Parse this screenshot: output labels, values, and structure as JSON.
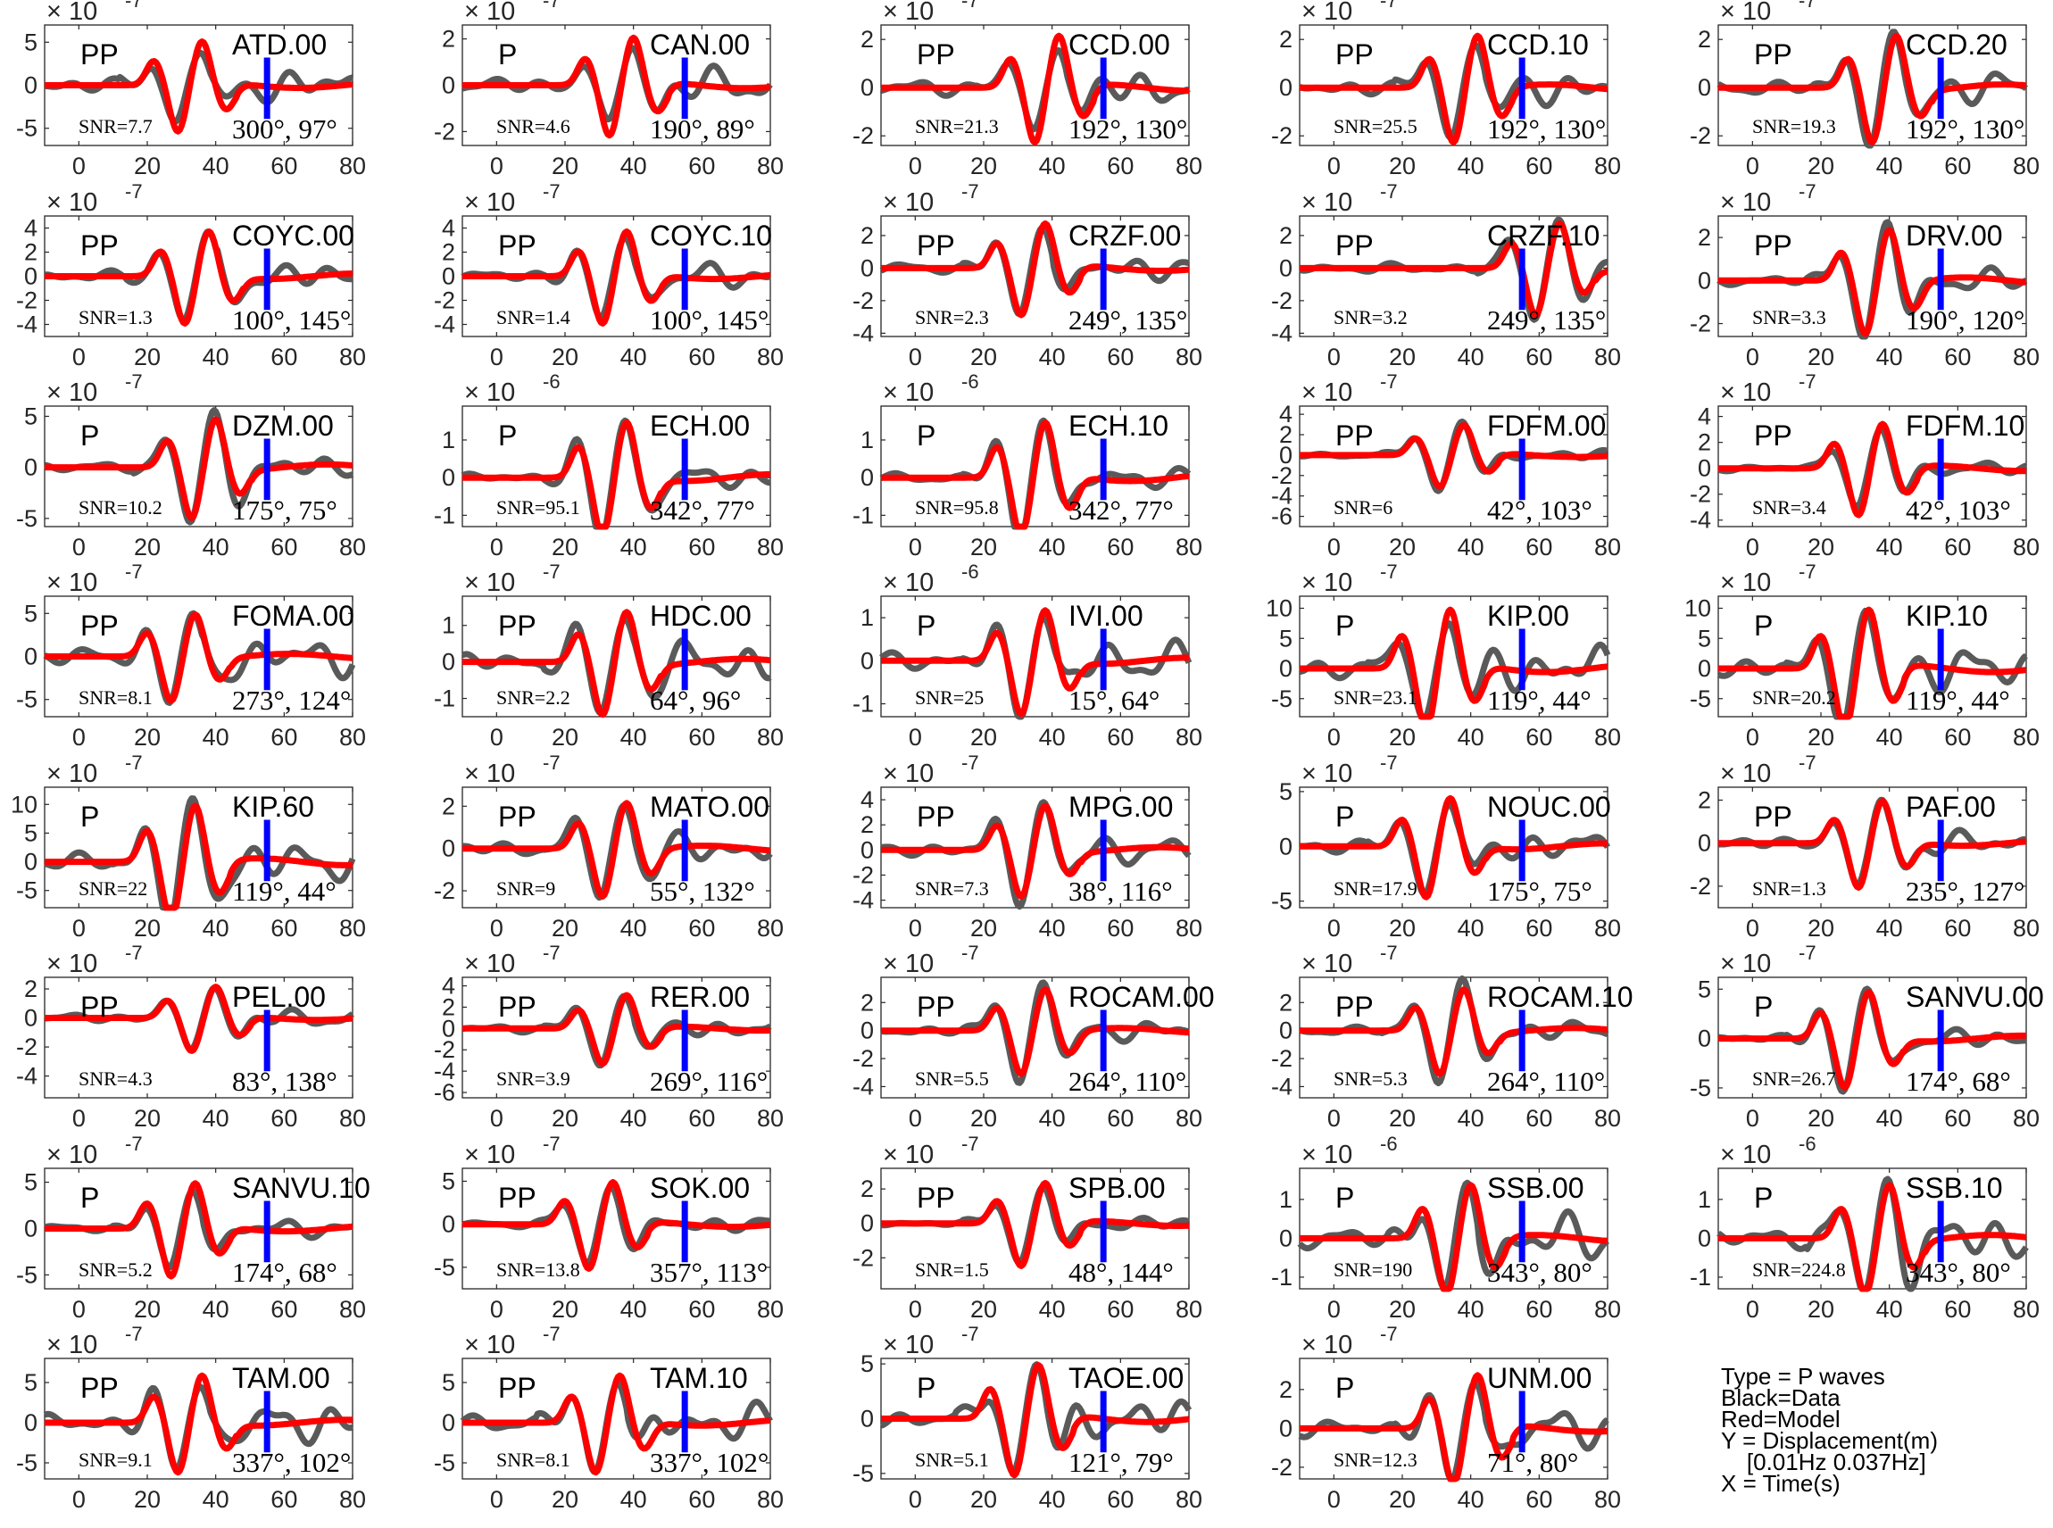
{
  "chart_data": {
    "type": "line",
    "layout": "small-multiples",
    "xlim": [
      -10,
      80
    ],
    "x_ticks": [
      0,
      20,
      40,
      60,
      80
    ],
    "colors": {
      "data": "#5a5a5a",
      "model": "#ff0000",
      "marker": "#0000ff"
    },
    "series_legend": [
      "Black=Data",
      "Red=Model"
    ],
    "panels": [
      {
        "station": "ATD.00",
        "phase": "PP",
        "snr": "SNR=7.7",
        "angles": "300°, 97°",
        "exponent": "-7",
        "y_ticks": [
          "5",
          "0",
          "-5"
        ],
        "y_vals": [
          5,
          0,
          -5
        ],
        "ylim": [
          -7,
          7
        ],
        "peak": 5.2,
        "t0": 18,
        "seed": 1
      },
      {
        "station": "CAN.00",
        "phase": "P",
        "snr": "SNR=4.6",
        "angles": "190°, 89°",
        "exponent": "-7",
        "y_ticks": [
          "2",
          "0",
          "-2"
        ],
        "y_vals": [
          2,
          0,
          -2
        ],
        "ylim": [
          -2.6,
          2.6
        ],
        "peak": 2.1,
        "t0": 22,
        "seed": 2
      },
      {
        "station": "CCD.00",
        "phase": "PP",
        "snr": "SNR=21.3",
        "angles": "192°, 130°",
        "exponent": "-7",
        "y_ticks": [
          "2",
          "0",
          "-2"
        ],
        "y_vals": [
          2,
          0,
          -2
        ],
        "ylim": [
          -2.4,
          2.6
        ],
        "peak": 2.2,
        "t0": 24,
        "seed": 3
      },
      {
        "station": "CCD.10",
        "phase": "PP",
        "snr": "SNR=25.5",
        "angles": "192°, 130°",
        "exponent": "-7",
        "y_ticks": [
          "2",
          "0",
          "-2"
        ],
        "y_vals": [
          2,
          0,
          -2
        ],
        "ylim": [
          -2.4,
          2.6
        ],
        "peak": 2.2,
        "t0": 24,
        "seed": 4
      },
      {
        "station": "CCD.20",
        "phase": "PP",
        "snr": "SNR=19.3",
        "angles": "192°, 130°",
        "exponent": "-7",
        "y_ticks": [
          "2",
          "0",
          "-2"
        ],
        "y_vals": [
          2,
          0,
          -2
        ],
        "ylim": [
          -2.4,
          2.6
        ],
        "peak": 2.2,
        "t0": 24,
        "seed": 5
      },
      {
        "station": "COYC.00",
        "phase": "PP",
        "snr": "SNR=1.3",
        "angles": "100°, 145°",
        "exponent": "-7",
        "y_ticks": [
          "4",
          "2",
          "0",
          "-2",
          "-4"
        ],
        "y_vals": [
          4,
          2,
          0,
          -2,
          -4
        ],
        "ylim": [
          -5,
          5
        ],
        "peak": 3.8,
        "t0": 20,
        "seed": 6
      },
      {
        "station": "COYC.10",
        "phase": "PP",
        "snr": "SNR=1.4",
        "angles": "100°, 145°",
        "exponent": "-7",
        "y_ticks": [
          "4",
          "2",
          "0",
          "-2",
          "-4"
        ],
        "y_vals": [
          4,
          2,
          0,
          -2,
          -4
        ],
        "ylim": [
          -5,
          5
        ],
        "peak": 3.8,
        "t0": 20,
        "seed": 7
      },
      {
        "station": "CRZF.00",
        "phase": "PP",
        "snr": "SNR=2.3",
        "angles": "249°, 135°",
        "exponent": "-7",
        "y_ticks": [
          "2",
          "0",
          "-2",
          "-4"
        ],
        "y_vals": [
          2,
          0,
          -2,
          -4
        ],
        "ylim": [
          -4.2,
          3.2
        ],
        "peak": 2.8,
        "t0": 20,
        "seed": 8
      },
      {
        "station": "CRZF.10",
        "phase": "PP",
        "snr": "SNR=3.2",
        "angles": "249°, 135°",
        "exponent": "-7",
        "y_ticks": [
          "2",
          "0",
          "-2",
          "-4"
        ],
        "y_vals": [
          2,
          0,
          -2,
          -4
        ],
        "ylim": [
          -4.2,
          3.2
        ],
        "peak": 2.8,
        "t0": 48,
        "seed": 9
      },
      {
        "station": "DRV.00",
        "phase": "PP",
        "snr": "SNR=3.3",
        "angles": "190°, 120°",
        "exponent": "-7",
        "y_ticks": [
          "2",
          "0",
          "-2"
        ],
        "y_vals": [
          2,
          0,
          -2
        ],
        "ylim": [
          -2.6,
          3
        ],
        "peak": 2.4,
        "t0": 22,
        "seed": 10
      },
      {
        "station": "DZM.00",
        "phase": "P",
        "snr": "SNR=10.2",
        "angles": "175°, 75°",
        "exponent": "-7",
        "y_ticks": [
          "5",
          "0",
          "-5"
        ],
        "y_vals": [
          5,
          0,
          -5
        ],
        "ylim": [
          -5.8,
          6
        ],
        "peak": 4.8,
        "t0": 22,
        "seed": 11
      },
      {
        "station": "ECH.00",
        "phase": "P",
        "snr": "SNR=95.1",
        "angles": "342°, 77°",
        "exponent": "-6",
        "y_ticks": [
          "1",
          "0",
          "-1"
        ],
        "y_vals": [
          1,
          0,
          -1
        ],
        "ylim": [
          -1.3,
          1.9
        ],
        "peak": 1.5,
        "t0": 20,
        "seed": 12
      },
      {
        "station": "ECH.10",
        "phase": "P",
        "snr": "SNR=95.8",
        "angles": "342°, 77°",
        "exponent": "-6",
        "y_ticks": [
          "1",
          "0",
          "-1"
        ],
        "y_vals": [
          1,
          0,
          -1
        ],
        "ylim": [
          -1.3,
          1.9
        ],
        "peak": 1.5,
        "t0": 20,
        "seed": 13
      },
      {
        "station": "FDFM.00",
        "phase": "PP",
        "snr": "SNR=6",
        "angles": "42°, 103°",
        "exponent": "-7",
        "y_ticks": [
          "4",
          "2",
          "0",
          "-2",
          "-4",
          "-6"
        ],
        "y_vals": [
          4,
          2,
          0,
          -2,
          -4,
          -6
        ],
        "ylim": [
          -7,
          4.8
        ],
        "peak": 3,
        "t0": 20,
        "seed": 14
      },
      {
        "station": "FDFM.10",
        "phase": "PP",
        "snr": "SNR=3.4",
        "angles": "42°, 103°",
        "exponent": "-7",
        "y_ticks": [
          "4",
          "2",
          "0",
          "-2",
          "-4"
        ],
        "y_vals": [
          4,
          2,
          0,
          -2,
          -4
        ],
        "ylim": [
          -4.5,
          4.8
        ],
        "peak": 3.5,
        "t0": 20,
        "seed": 15
      },
      {
        "station": "FOMA.00",
        "phase": "PP",
        "snr": "SNR=8.1",
        "angles": "273°, 124°",
        "exponent": "-7",
        "y_ticks": [
          "5",
          "0",
          "-5"
        ],
        "y_vals": [
          5,
          0,
          -5
        ],
        "ylim": [
          -7,
          7
        ],
        "peak": 5,
        "t0": 16,
        "seed": 16
      },
      {
        "station": "HDC.00",
        "phase": "PP",
        "snr": "SNR=2.2",
        "angles": "64°, 96°",
        "exponent": "-7",
        "y_ticks": [
          "1",
          "0",
          "-1"
        ],
        "y_vals": [
          1,
          0,
          -1
        ],
        "ylim": [
          -1.5,
          1.8
        ],
        "peak": 1.4,
        "t0": 20,
        "seed": 17
      },
      {
        "station": "IVI.00",
        "phase": "P",
        "snr": "SNR=25",
        "angles": "15°, 64°",
        "exponent": "-6",
        "y_ticks": [
          "1",
          "0",
          "-1"
        ],
        "y_vals": [
          1,
          0,
          -1
        ],
        "ylim": [
          -1.3,
          1.5
        ],
        "peak": 1.2,
        "t0": 20,
        "seed": 18
      },
      {
        "station": "KIP.00",
        "phase": "P",
        "snr": "SNR=23.1",
        "angles": "119°, 44°",
        "exponent": "-7",
        "y_ticks": [
          "10",
          "5",
          "0",
          "-5"
        ],
        "y_vals": [
          10,
          5,
          0,
          -5
        ],
        "ylim": [
          -8,
          12
        ],
        "peak": 10,
        "t0": 16,
        "seed": 19
      },
      {
        "station": "KIP.10",
        "phase": "P",
        "snr": "SNR=20.2",
        "angles": "119°, 44°",
        "exponent": "-7",
        "y_ticks": [
          "10",
          "5",
          "0",
          "-5"
        ],
        "y_vals": [
          10,
          5,
          0,
          -5
        ],
        "ylim": [
          -8,
          12
        ],
        "peak": 10,
        "t0": 16,
        "seed": 20
      },
      {
        "station": "KIP.60",
        "phase": "P",
        "snr": "SNR=22",
        "angles": "119°, 44°",
        "exponent": "-7",
        "y_ticks": [
          "10",
          "5",
          "0",
          "-5"
        ],
        "y_vals": [
          10,
          5,
          0,
          -5
        ],
        "ylim": [
          -8,
          13
        ],
        "peak": 10,
        "t0": 16,
        "seed": 21
      },
      {
        "station": "MATO.00",
        "phase": "PP",
        "snr": "SNR=9",
        "angles": "55°, 132°",
        "exponent": "-7",
        "y_ticks": [
          "2",
          "0",
          "-2"
        ],
        "y_vals": [
          2,
          0,
          -2
        ],
        "ylim": [
          -2.8,
          2.9
        ],
        "peak": 2.2,
        "t0": 20,
        "seed": 22
      },
      {
        "station": "MPG.00",
        "phase": "PP",
        "snr": "SNR=7.3",
        "angles": "38°, 116°",
        "exponent": "-7",
        "y_ticks": [
          "4",
          "2",
          "0",
          "-2",
          "-4"
        ],
        "y_vals": [
          4,
          2,
          0,
          -2,
          -4
        ],
        "ylim": [
          -4.6,
          5
        ],
        "peak": 3.6,
        "t0": 20,
        "seed": 23
      },
      {
        "station": "NOUC.00",
        "phase": "P",
        "snr": "SNR=17.9",
        "angles": "175°, 75°",
        "exponent": "-7",
        "y_ticks": [
          "5",
          "0",
          "-5"
        ],
        "y_vals": [
          5,
          0,
          -5
        ],
        "ylim": [
          -5.6,
          5.4
        ],
        "peak": 4.5,
        "t0": 16,
        "seed": 24
      },
      {
        "station": "PAF.00",
        "phase": "PP",
        "snr": "SNR=1.3",
        "angles": "235°, 127°",
        "exponent": "-7",
        "y_ticks": [
          "2",
          "0",
          "-2"
        ],
        "y_vals": [
          2,
          0,
          -2
        ],
        "ylim": [
          -3,
          2.6
        ],
        "peak": 2,
        "t0": 20,
        "seed": 25
      },
      {
        "station": "PEL.00",
        "phase": "PP",
        "snr": "SNR=4.3",
        "angles": "83°, 138°",
        "exponent": "-7",
        "y_ticks": [
          "2",
          "0",
          "-2",
          "-4"
        ],
        "y_vals": [
          2,
          0,
          -2,
          -4
        ],
        "ylim": [
          -5.5,
          2.8
        ],
        "peak": 2.2,
        "t0": 22,
        "seed": 26
      },
      {
        "station": "RER.00",
        "phase": "PP",
        "snr": "SNR=3.9",
        "angles": "269°, 116°",
        "exponent": "-7",
        "y_ticks": [
          "4",
          "2",
          "0",
          "-2",
          "-4",
          "-6"
        ],
        "y_vals": [
          4,
          2,
          0,
          -2,
          -4,
          -6
        ],
        "ylim": [
          -6.5,
          4.8
        ],
        "peak": 3.2,
        "t0": 20,
        "seed": 27
      },
      {
        "station": "ROCAM.00",
        "phase": "PP",
        "snr": "SNR=5.5",
        "angles": "264°, 110°",
        "exponent": "-7",
        "y_ticks": [
          "2",
          "0",
          "-2",
          "-4"
        ],
        "y_vals": [
          2,
          0,
          -2,
          -4
        ],
        "ylim": [
          -4.8,
          3.8
        ],
        "peak": 3,
        "t0": 20,
        "seed": 28
      },
      {
        "station": "ROCAM.10",
        "phase": "PP",
        "snr": "SNR=5.3",
        "angles": "264°, 110°",
        "exponent": "-7",
        "y_ticks": [
          "2",
          "0",
          "-2",
          "-4"
        ],
        "y_vals": [
          2,
          0,
          -2,
          -4
        ],
        "ylim": [
          -4.8,
          3.8
        ],
        "peak": 3,
        "t0": 20,
        "seed": 29
      },
      {
        "station": "SANVU.00",
        "phase": "P",
        "snr": "SNR=26.7",
        "angles": "174°, 68°",
        "exponent": "-7",
        "y_ticks": [
          "5",
          "0",
          "-5"
        ],
        "y_vals": [
          5,
          0,
          -5
        ],
        "ylim": [
          -6,
          6.2
        ],
        "peak": 4.8,
        "t0": 16,
        "seed": 30
      },
      {
        "station": "SANVU.10",
        "phase": "P",
        "snr": "SNR=5.2",
        "angles": "174°, 68°",
        "exponent": "-7",
        "y_ticks": [
          "5",
          "0",
          "-5"
        ],
        "y_vals": [
          5,
          0,
          -5
        ],
        "ylim": [
          -6.5,
          6.5
        ],
        "peak": 5,
        "t0": 16,
        "seed": 31
      },
      {
        "station": "SOK.00",
        "phase": "PP",
        "snr": "SNR=13.8",
        "angles": "357°, 113°",
        "exponent": "-7",
        "y_ticks": [
          "5",
          "0",
          "-5"
        ],
        "y_vals": [
          5,
          0,
          -5
        ],
        "ylim": [
          -7.5,
          6.5
        ],
        "peak": 5,
        "t0": 16,
        "seed": 32
      },
      {
        "station": "SPB.00",
        "phase": "PP",
        "snr": "SNR=1.5",
        "angles": "48°, 144°",
        "exponent": "-7",
        "y_ticks": [
          "2",
          "0",
          "-2"
        ],
        "y_vals": [
          2,
          0,
          -2
        ],
        "ylim": [
          -3.8,
          3.2
        ],
        "peak": 2.4,
        "t0": 20,
        "seed": 33
      },
      {
        "station": "SSB.00",
        "phase": "P",
        "snr": "SNR=190",
        "angles": "343°, 80°",
        "exponent": "-6",
        "y_ticks": [
          "1",
          "0",
          "-1"
        ],
        "y_vals": [
          1,
          0,
          -1
        ],
        "ylim": [
          -1.3,
          1.8
        ],
        "peak": 1.4,
        "t0": 22,
        "seed": 34
      },
      {
        "station": "SSB.10",
        "phase": "P",
        "snr": "SNR=224.8",
        "angles": "343°, 80°",
        "exponent": "-6",
        "y_ticks": [
          "1",
          "0",
          "-1"
        ],
        "y_vals": [
          1,
          0,
          -1
        ],
        "ylim": [
          -1.3,
          1.8
        ],
        "peak": 1.4,
        "t0": 22,
        "seed": 35
      },
      {
        "station": "TAM.00",
        "phase": "PP",
        "snr": "SNR=9.1",
        "angles": "337°, 102°",
        "exponent": "-7",
        "y_ticks": [
          "5",
          "0",
          "-5"
        ],
        "y_vals": [
          5,
          0,
          -5
        ],
        "ylim": [
          -7,
          8
        ],
        "peak": 6,
        "t0": 18,
        "seed": 36
      },
      {
        "station": "TAM.10",
        "phase": "PP",
        "snr": "SNR=8.1",
        "angles": "337°, 102°",
        "exponent": "-7",
        "y_ticks": [
          "5",
          "0",
          "-5"
        ],
        "y_vals": [
          5,
          0,
          -5
        ],
        "ylim": [
          -7,
          8
        ],
        "peak": 6,
        "t0": 18,
        "seed": 37
      },
      {
        "station": "TAOE.00",
        "phase": "P",
        "snr": "SNR=5.1",
        "angles": "121°, 79°",
        "exponent": "-7",
        "y_ticks": [
          "5",
          "0",
          "-5"
        ],
        "y_vals": [
          5,
          0,
          -5
        ],
        "ylim": [
          -5.5,
          5.5
        ],
        "peak": 5,
        "t0": 18,
        "seed": 38
      },
      {
        "station": "UNM.00",
        "phase": "P",
        "snr": "SNR=12.3",
        "angles": "71°, 80°",
        "exponent": "-7",
        "y_ticks": [
          "2",
          "0",
          "-2"
        ],
        "y_vals": [
          2,
          0,
          -2
        ],
        "ylim": [
          -2.6,
          3.6
        ],
        "peak": 2.8,
        "t0": 24,
        "seed": 39
      }
    ]
  },
  "legend": {
    "line1": "Type = P waves",
    "line2": "Black=Data",
    "line3": "Red=Model",
    "line4": "Y = Displacement(m)",
    "line5": "    [0.01Hz 0.037Hz]",
    "line6": "X = Time(s)"
  }
}
